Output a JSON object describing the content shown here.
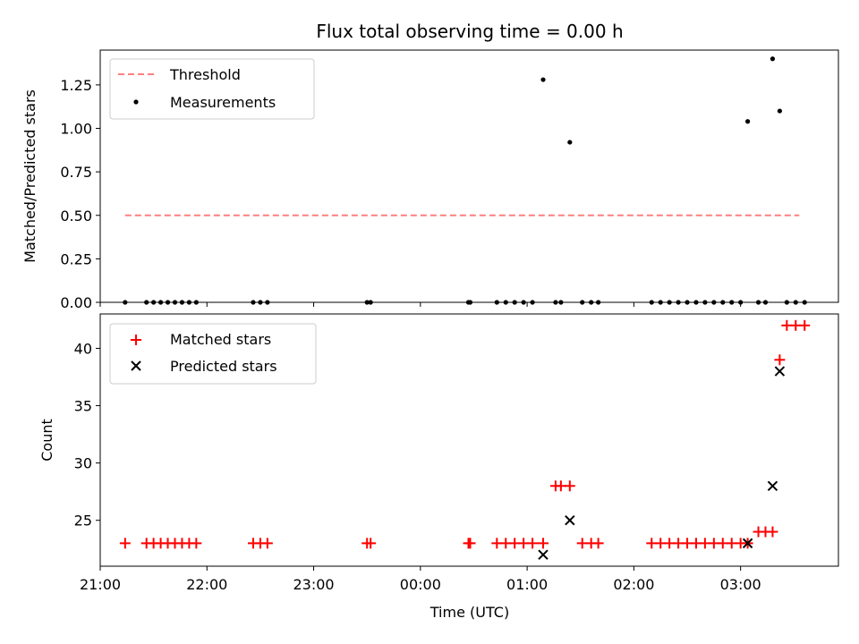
{
  "chart_data": [
    {
      "type": "scatter",
      "title": "Flux total observing time = 0.00 h",
      "xlabel": "",
      "ylabel": "Matched/Predicted stars",
      "xlim": [
        "21:00",
        "03:55"
      ],
      "ylim": [
        0,
        1.45
      ],
      "yticks": [
        0.0,
        0.25,
        0.5,
        0.75,
        1.0,
        1.25
      ],
      "ytick_labels": [
        "0.00",
        "0.25",
        "0.50",
        "0.75",
        "1.00",
        "1.25"
      ],
      "legend_position": "upper-left",
      "series": [
        {
          "name": "Threshold",
          "kind": "dashed-line",
          "color": "#ff7f7f",
          "x": [
            "21:14",
            "03:33"
          ],
          "y": [
            0.5,
            0.5
          ]
        },
        {
          "name": "Measurements",
          "kind": "dots",
          "color": "#000000",
          "x": [
            "21:14",
            "21:26",
            "21:30",
            "21:34",
            "21:38",
            "21:42",
            "21:46",
            "21:50",
            "21:54",
            "22:26",
            "22:30",
            "22:34",
            "23:30",
            "23:32",
            "00:27",
            "00:28",
            "00:43",
            "00:48",
            "00:53",
            "00:58",
            "01:03",
            "01:09",
            "01:16",
            "01:19",
            "01:24",
            "01:31",
            "01:36",
            "01:40",
            "02:10",
            "02:15",
            "02:20",
            "02:25",
            "02:30",
            "02:35",
            "02:40",
            "02:45",
            "02:50",
            "02:55",
            "03:00",
            "03:04",
            "03:10",
            "03:14",
            "03:18",
            "03:22",
            "03:26",
            "03:31",
            "03:36"
          ],
          "y": [
            0,
            0,
            0,
            0,
            0,
            0,
            0,
            0,
            0,
            0,
            0,
            0,
            0,
            0,
            0,
            0,
            0,
            0,
            0,
            0,
            0,
            1.28,
            0,
            0,
            0.92,
            0,
            0,
            0,
            0,
            0,
            0,
            0,
            0,
            0,
            0,
            0,
            0,
            0,
            0,
            1.04,
            0,
            0,
            1.4,
            1.1,
            0,
            0,
            0
          ]
        }
      ]
    },
    {
      "type": "scatter",
      "title": "",
      "xlabel": "Time (UTC)",
      "ylabel": "Count",
      "xlim": [
        "21:00",
        "03:55"
      ],
      "ylim": [
        21,
        43
      ],
      "yticks": [
        25,
        30,
        35,
        40
      ],
      "ytick_labels": [
        "25",
        "30",
        "35",
        "40"
      ],
      "xticks": [
        "21:00",
        "22:00",
        "23:00",
        "00:00",
        "01:00",
        "02:00",
        "03:00"
      ],
      "xtick_labels": [
        "21:00",
        "22:00",
        "23:00",
        "00:00",
        "01:00",
        "02:00",
        "03:00"
      ],
      "legend_position": "upper-left",
      "series": [
        {
          "name": "Matched stars",
          "kind": "plus",
          "color": "#ff0000",
          "x": [
            "21:14",
            "21:26",
            "21:30",
            "21:34",
            "21:38",
            "21:42",
            "21:46",
            "21:50",
            "21:54",
            "22:26",
            "22:30",
            "22:34",
            "23:30",
            "23:32",
            "00:27",
            "00:28",
            "00:43",
            "00:48",
            "00:53",
            "00:58",
            "01:03",
            "01:09",
            "01:16",
            "01:19",
            "01:24",
            "01:31",
            "01:36",
            "01:40",
            "02:10",
            "02:15",
            "02:20",
            "02:25",
            "02:30",
            "02:35",
            "02:40",
            "02:45",
            "02:50",
            "02:55",
            "03:00",
            "03:04",
            "03:10",
            "03:14",
            "03:18",
            "03:22",
            "03:26",
            "03:31",
            "03:36"
          ],
          "y": [
            23,
            23,
            23,
            23,
            23,
            23,
            23,
            23,
            23,
            23,
            23,
            23,
            23,
            23,
            23,
            23,
            23,
            23,
            23,
            23,
            23,
            23,
            28,
            28,
            28,
            23,
            23,
            23,
            23,
            23,
            23,
            23,
            23,
            23,
            23,
            23,
            23,
            23,
            23,
            23,
            24,
            24,
            24,
            39,
            42,
            42,
            42
          ]
        },
        {
          "name": "Predicted stars",
          "kind": "x",
          "color": "#000000",
          "x": [
            "01:09",
            "01:24",
            "03:04",
            "03:18",
            "03:22"
          ],
          "y": [
            22,
            25,
            23,
            28,
            38
          ]
        }
      ]
    }
  ]
}
